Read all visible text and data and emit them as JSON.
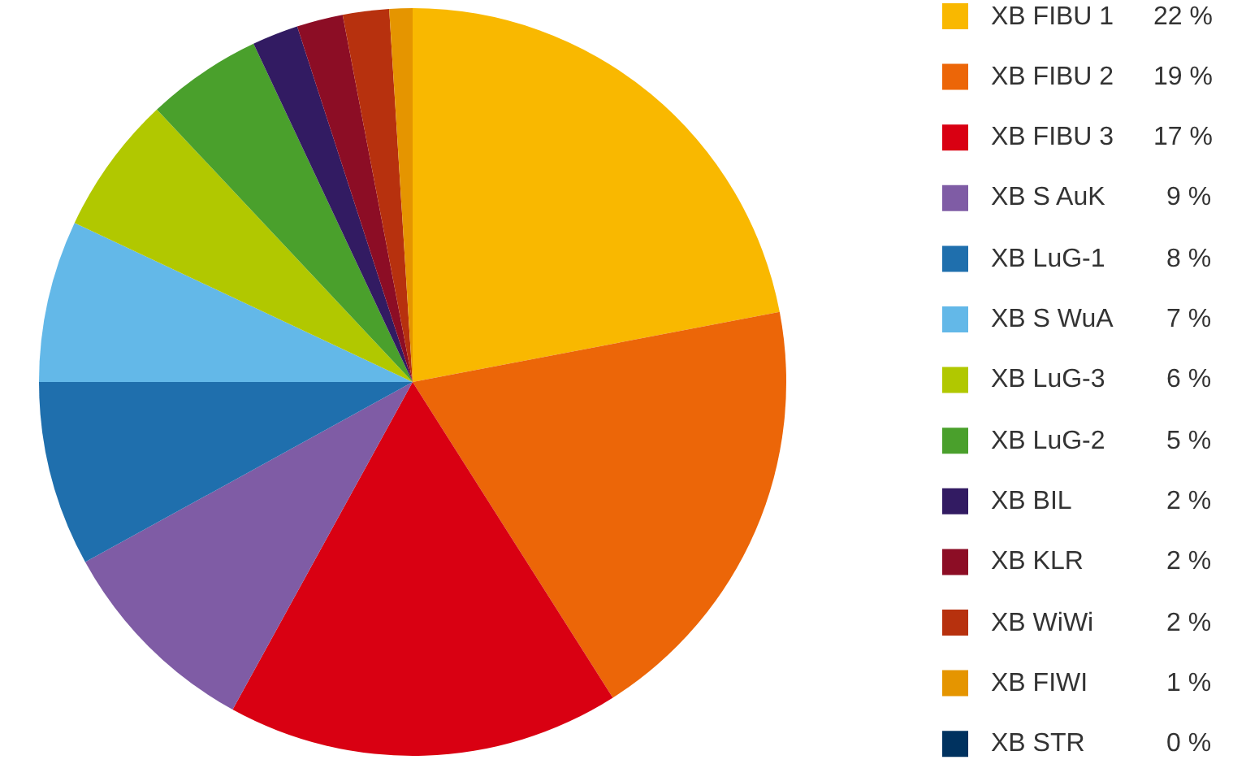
{
  "chart_data": {
    "type": "pie",
    "categories": [
      "XB FIBU 1",
      "XB FIBU 2",
      "XB FIBU 3",
      "XB S AuK",
      "XB LuG-1",
      "XB S WuA",
      "XB LuG-3",
      "XB LuG-2",
      "XB BIL",
      "XB KLR",
      "XB WiWi",
      "XB FIWI",
      "XB STR"
    ],
    "values": [
      22,
      19,
      17,
      9,
      8,
      7,
      6,
      5,
      2,
      2,
      2,
      1,
      0
    ],
    "colors": [
      "#f9b800",
      "#ec6608",
      "#d90012",
      "#7f5ca5",
      "#1f6fad",
      "#63b8e8",
      "#b1c800",
      "#4aa02c",
      "#321b62",
      "#8c0d25",
      "#b7310e",
      "#e59500",
      "#00325f"
    ],
    "value_labels": [
      "22 %",
      "19 %",
      "17 %",
      "9 %",
      "8 %",
      "7 %",
      "6 %",
      "5 %",
      "2 %",
      "2 %",
      "2 %",
      "1 %",
      "0 %"
    ],
    "legend": "right"
  }
}
